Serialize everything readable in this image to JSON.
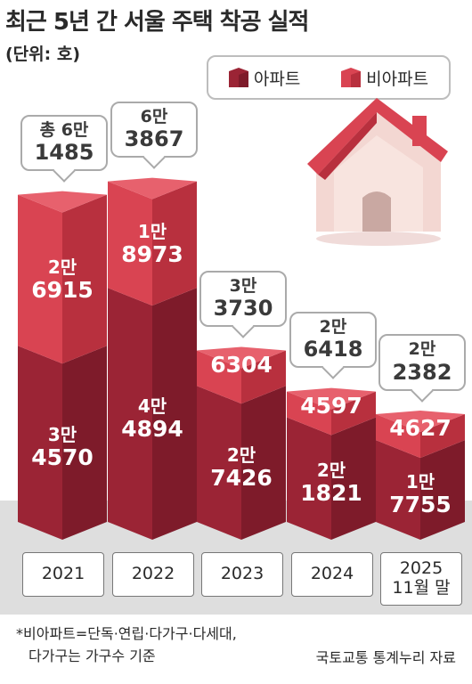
{
  "title": "최근 5년 간 서울 주택 착공 실적",
  "unit": "(단위: 호)",
  "legend": {
    "apt": "아파트",
    "nonapt": "비아파트"
  },
  "colors": {
    "apt": "#9b2435",
    "apt_side": "#7e1b2a",
    "nonapt": "#d94452",
    "nonapt_side": "#b8303e",
    "cap": "#e7616d"
  },
  "chart_data": {
    "type": "bar",
    "stacked": true,
    "categories": [
      "2021",
      "2022",
      "2023",
      "2024",
      "2025 11월 말"
    ],
    "series": [
      {
        "name": "아파트",
        "values": [
          34570,
          44894,
          27426,
          21821,
          17755
        ]
      },
      {
        "name": "비아파트",
        "values": [
          26915,
          18973,
          6304,
          4597,
          4627
        ]
      }
    ],
    "totals": [
      61485,
      63867,
      33730,
      26418,
      22382
    ]
  },
  "bars": [
    {
      "year": "2021",
      "year2": "",
      "total": [
        "총 6만",
        "1485"
      ],
      "apt": [
        "3만",
        "4570"
      ],
      "nonapt": [
        "2만",
        "6915"
      ]
    },
    {
      "year": "2022",
      "year2": "",
      "total": [
        "6만",
        "3867"
      ],
      "apt": [
        "4만",
        "4894"
      ],
      "nonapt": [
        "1만",
        "8973"
      ]
    },
    {
      "year": "2023",
      "year2": "",
      "total": [
        "3만",
        "3730"
      ],
      "apt": [
        "2만",
        "7426"
      ],
      "nonapt": [
        "",
        "6304"
      ]
    },
    {
      "year": "2024",
      "year2": "",
      "total": [
        "2만",
        "6418"
      ],
      "apt": [
        "2만",
        "1821"
      ],
      "nonapt": [
        "",
        "4597"
      ]
    },
    {
      "year": "2025",
      "year2": "11월 말",
      "total": [
        "2만",
        "2382"
      ],
      "apt": [
        "1만",
        "7755"
      ],
      "nonapt": [
        "",
        "4627"
      ]
    }
  ],
  "note_line1": "*비아파트=단독·연립·다가구·다세대,",
  "note_line2": "다가구는 가구수 기준",
  "source": "국토교통 통계누리 자료"
}
